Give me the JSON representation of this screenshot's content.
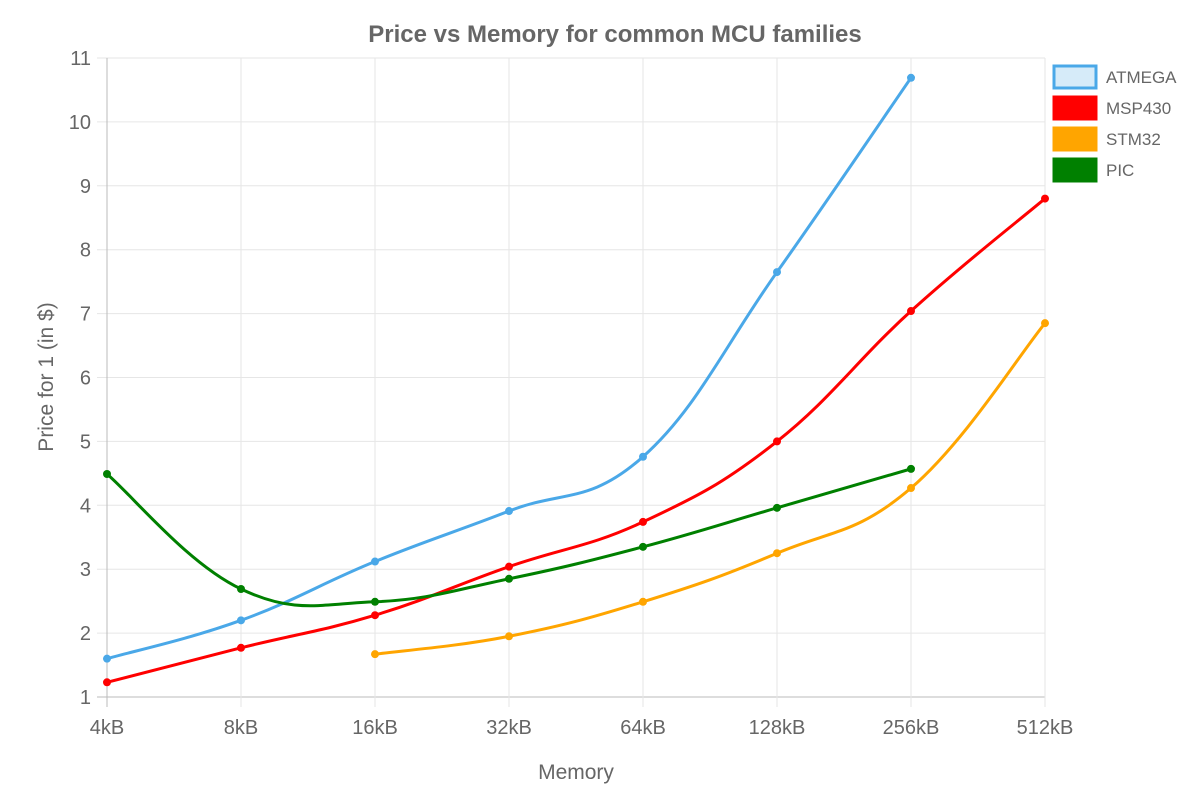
{
  "chart_data": {
    "type": "line",
    "title": "Price vs Memory for common MCU families",
    "xlabel": "Memory",
    "ylabel": "Price for 1 (in $)",
    "categories": [
      "4kB",
      "8kB",
      "16kB",
      "32kB",
      "64kB",
      "128kB",
      "256kB",
      "512kB"
    ],
    "ylim": [
      1,
      11
    ],
    "yticks": [
      1,
      2,
      3,
      4,
      5,
      6,
      7,
      8,
      9,
      10,
      11
    ],
    "grid": true,
    "legend_position": "right",
    "series": [
      {
        "name": "ATMEGA",
        "color": "#4aa8e8",
        "fill": "#d6ebf9",
        "values": [
          1.6,
          2.2,
          3.12,
          3.91,
          4.76,
          7.65,
          10.69,
          null
        ]
      },
      {
        "name": "MSP430",
        "color": "#ff0000",
        "fill": "#ff0000",
        "values": [
          1.23,
          1.77,
          2.28,
          3.04,
          3.74,
          5.0,
          7.04,
          8.8
        ]
      },
      {
        "name": "STM32",
        "color": "#ffa500",
        "fill": "#ffa500",
        "values": [
          null,
          null,
          1.67,
          1.95,
          2.49,
          3.25,
          4.27,
          6.85
        ]
      },
      {
        "name": "PIC",
        "color": "#008000",
        "fill": "#008000",
        "values": [
          4.49,
          2.69,
          2.49,
          2.85,
          3.35,
          3.96,
          4.57,
          null
        ]
      }
    ]
  }
}
